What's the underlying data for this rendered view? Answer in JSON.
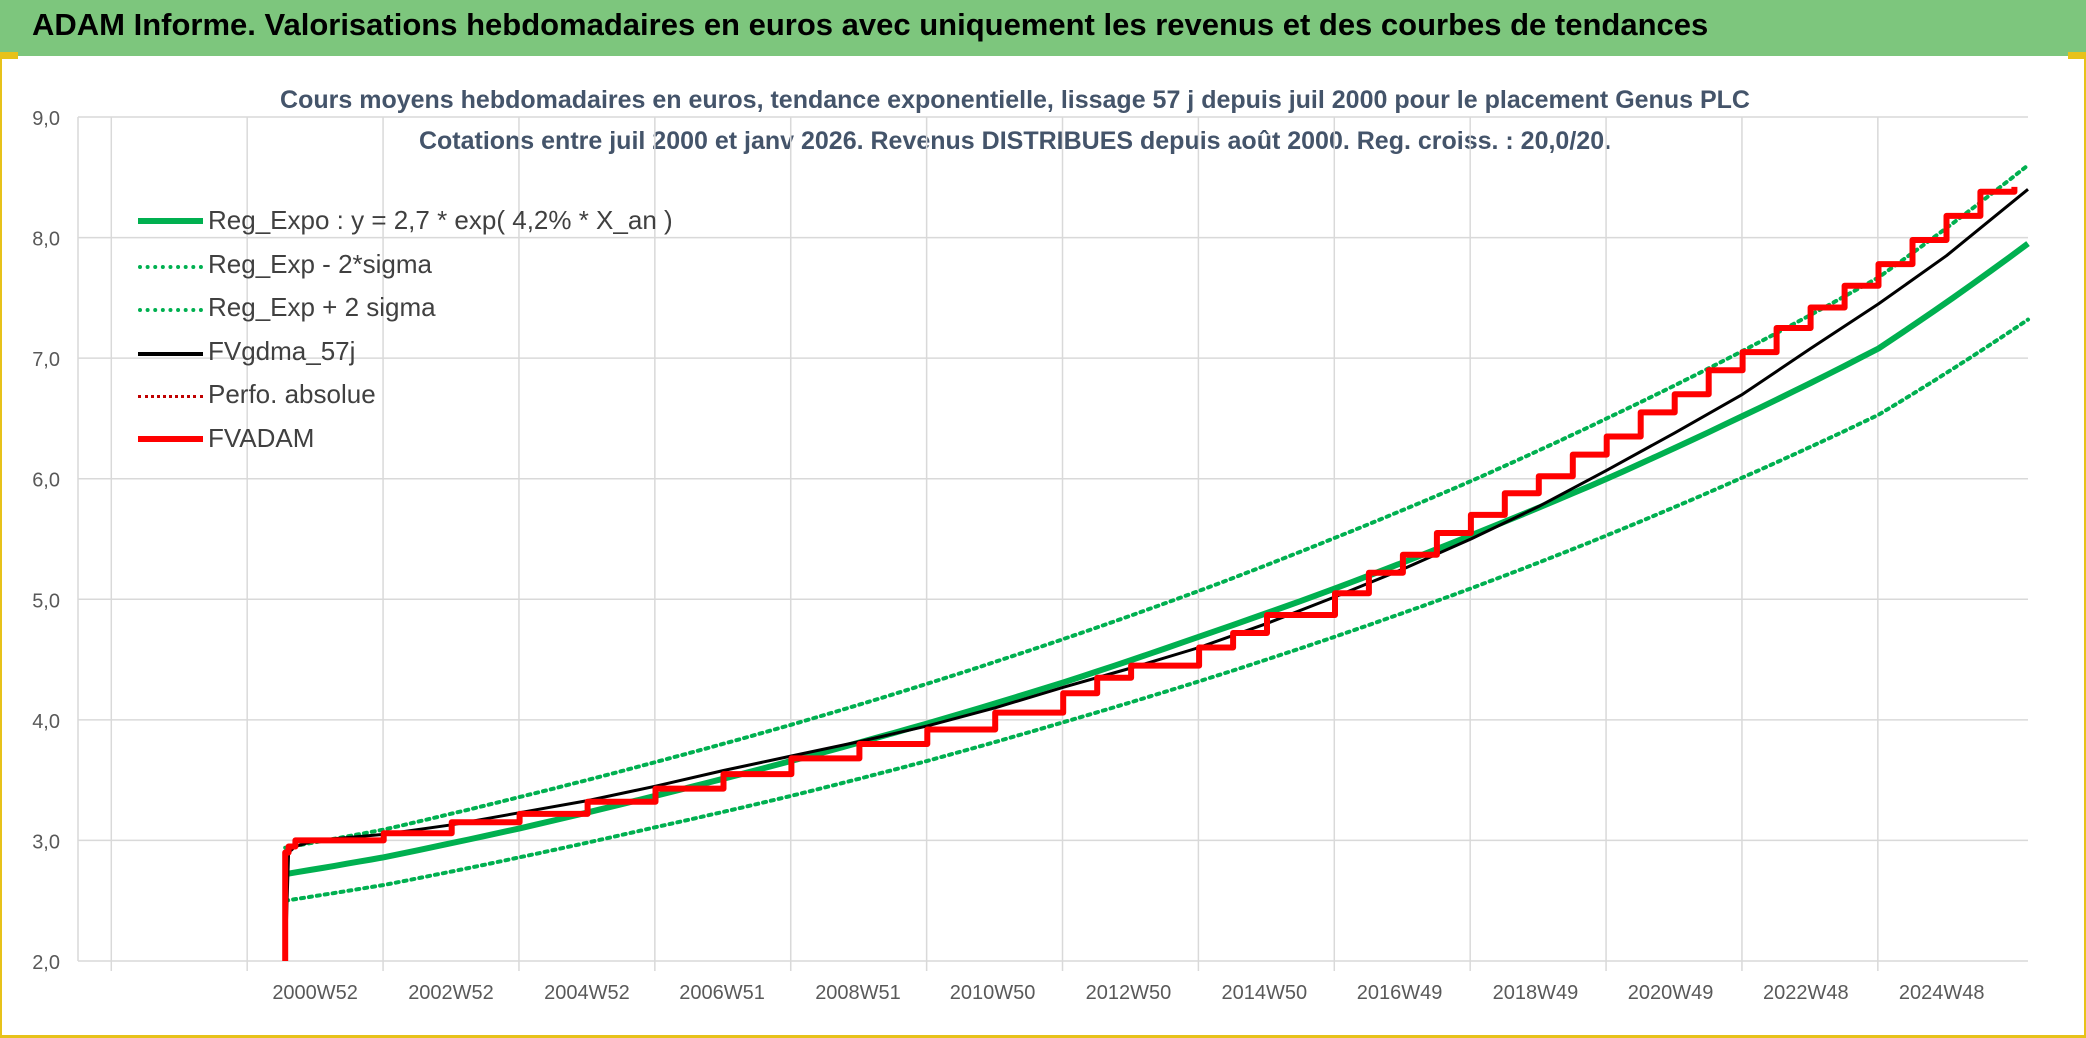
{
  "header": {
    "title": "ADAM Informe. Valorisations hebdomadaires en euros avec uniquement les revenus et des courbes de tendances"
  },
  "colors": {
    "header_band": "#7dc67d",
    "frame": "#e7c21a",
    "green": "#00b050",
    "black": "#000000",
    "red": "#ff0000",
    "dark_red": "#c00000",
    "title": "#44546a",
    "grid": "#d9d9d9"
  },
  "chart_data": {
    "type": "line",
    "title": "Cours moyens hebdomadaires en euros, tendance exponentielle, lissage 57 j depuis juil 2000 pour le placement Genus PLC",
    "subtitle": "Cotations entre juil 2000 et janv 2026. Revenus DISTRIBUES depuis août 2000. Reg. croiss. : 20,0/20.",
    "ylim": [
      2.0,
      9.0
    ],
    "y_ticks": [
      "2,0",
      "3,0",
      "4,0",
      "5,0",
      "6,0",
      "7,0",
      "8,0",
      "9,0"
    ],
    "x_range": [
      1997.5,
      2026.2
    ],
    "x_tick_labels": [
      "2000W52",
      "2002W52",
      "2004W52",
      "2006W51",
      "2008W51",
      "2010W50",
      "2012W50",
      "2014W50",
      "2016W49",
      "2018W49",
      "2020W49",
      "2022W48",
      "2024W48"
    ],
    "x_tick_years": [
      2000.99,
      2002.99,
      2004.99,
      2006.98,
      2008.98,
      2010.96,
      2012.96,
      2014.96,
      2016.95,
      2018.95,
      2020.94,
      2022.93,
      2024.93
    ],
    "grid": true,
    "legend_position": "top-left",
    "series": [
      {
        "name": "Reg_Expo : y = 2,7 * exp( 4,2% *  X_an )",
        "color": "#00b050",
        "style": "solid-thick",
        "x": [
          2000.55,
          2002,
          2004,
          2006,
          2008,
          2010,
          2012,
          2014,
          2016,
          2018,
          2020,
          2022,
          2024,
          2026.2
        ],
        "values": [
          2.72,
          2.86,
          3.1,
          3.37,
          3.66,
          3.97,
          4.31,
          4.69,
          5.09,
          5.53,
          6.0,
          6.52,
          7.08,
          7.95
        ]
      },
      {
        "name": "Reg_Exp - 2*sigma",
        "color": "#00b050",
        "style": "dotted",
        "x": [
          2000.55,
          2002,
          2004,
          2006,
          2008,
          2010,
          2012,
          2014,
          2016,
          2018,
          2020,
          2022,
          2024,
          2026.2
        ],
        "values": [
          2.5,
          2.63,
          2.86,
          3.11,
          3.37,
          3.66,
          3.98,
          4.32,
          4.69,
          5.09,
          5.53,
          6.01,
          6.53,
          7.32
        ]
      },
      {
        "name": "Reg_Exp + 2 sigma",
        "color": "#00b050",
        "style": "dotted",
        "x": [
          2000.55,
          2002,
          2004,
          2006,
          2008,
          2010,
          2012,
          2014,
          2016,
          2018,
          2020,
          2022,
          2024,
          2026.2
        ],
        "values": [
          2.94,
          3.09,
          3.36,
          3.65,
          3.96,
          4.3,
          4.67,
          5.07,
          5.51,
          5.98,
          6.5,
          7.06,
          7.67,
          8.6
        ]
      },
      {
        "name": "FVgdma_57j",
        "color": "#000000",
        "style": "solid",
        "x": [
          2000.55,
          2000.6,
          2000.7,
          2001.0,
          2002.0,
          2003.0,
          2004.0,
          2005.0,
          2006.0,
          2007.0,
          2008.0,
          2009.0,
          2010.0,
          2011.0,
          2012.0,
          2013.0,
          2014.0,
          2015.0,
          2016.0,
          2017.0,
          2018.0,
          2019.0,
          2020.0,
          2021.0,
          2022.0,
          2023.0,
          2024.0,
          2025.0,
          2026.2
        ],
        "values": [
          2.0,
          2.9,
          2.95,
          3.0,
          3.05,
          3.13,
          3.23,
          3.33,
          3.45,
          3.58,
          3.7,
          3.82,
          3.95,
          4.1,
          4.27,
          4.43,
          4.6,
          4.8,
          5.02,
          5.25,
          5.5,
          5.77,
          6.07,
          6.38,
          6.7,
          7.08,
          7.45,
          7.85,
          8.4
        ]
      },
      {
        "name": "Perfo. absolue",
        "color": "#c00000",
        "style": "dotted",
        "x": [],
        "values": []
      },
      {
        "name": "FVADAM",
        "color": "#ff0000",
        "style": "step-thick",
        "x": [
          2000.55,
          2000.55,
          2000.6,
          2000.7,
          2002.0,
          2003.0,
          2004.0,
          2005.0,
          2006.0,
          2007.0,
          2008.0,
          2009.0,
          2010.0,
          2011.0,
          2012.0,
          2012.5,
          2013.0,
          2014.0,
          2014.5,
          2015.0,
          2016.0,
          2016.5,
          2017.0,
          2017.5,
          2018.0,
          2018.5,
          2019.0,
          2019.5,
          2020.0,
          2020.5,
          2021.0,
          2021.5,
          2022.0,
          2022.5,
          2023.0,
          2023.5,
          2024.0,
          2024.5,
          2025.0,
          2025.5,
          2026.0
        ],
        "values": [
          2.0,
          2.9,
          2.95,
          3.0,
          3.06,
          3.15,
          3.22,
          3.32,
          3.43,
          3.55,
          3.68,
          3.8,
          3.92,
          4.06,
          4.22,
          4.35,
          4.45,
          4.6,
          4.72,
          4.87,
          5.05,
          5.22,
          5.37,
          5.55,
          5.7,
          5.88,
          6.02,
          6.2,
          6.35,
          6.55,
          6.7,
          6.9,
          7.05,
          7.25,
          7.42,
          7.6,
          7.78,
          7.98,
          8.18,
          8.38,
          8.42
        ]
      }
    ]
  }
}
